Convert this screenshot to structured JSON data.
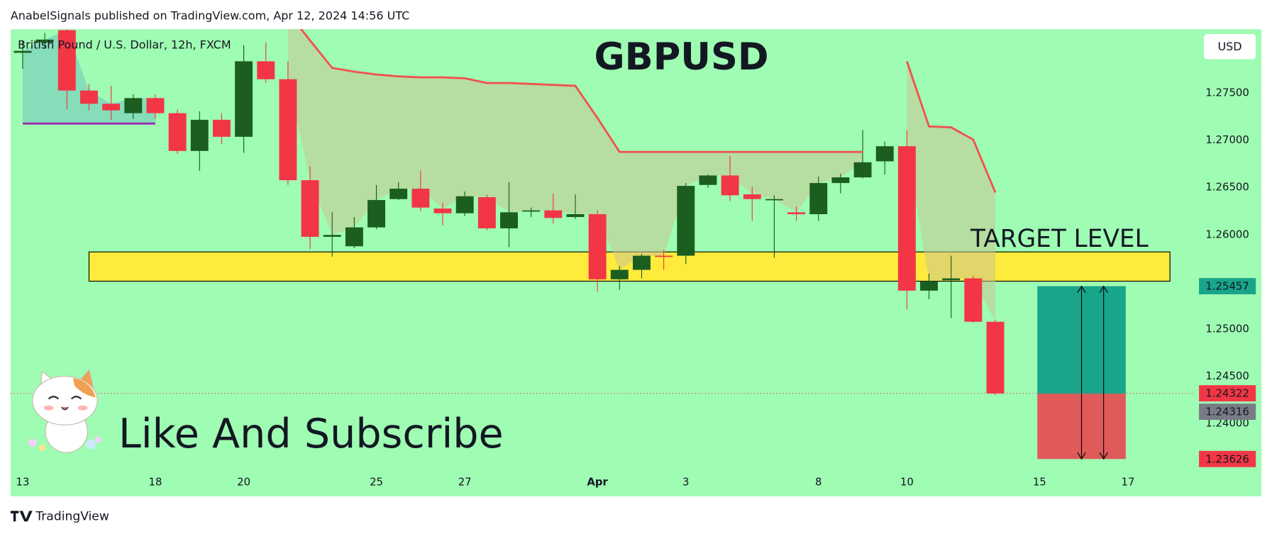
{
  "header": "AnabelSignals published on TradingView.com, Apr 12, 2024 14:56 UTC",
  "footer": "TradingView",
  "chart_data": {
    "type": "candlestick",
    "title": "GBPUSD",
    "symbol": "British Pound / U.S. Dollar, 12h, FXCM",
    "currency": "USD",
    "annotation": "Like And Subscribe",
    "open": [
      1.2793,
      1.2804,
      1.2817,
      1.2753,
      1.2739,
      1.2729,
      1.2745,
      1.2729,
      1.2689,
      1.2722,
      1.2704,
      1.2784,
      1.2765,
      1.2658,
      1.2598,
      1.2588,
      1.2608,
      1.2638,
      1.2649,
      1.2628,
      1.2623,
      1.264,
      1.2607,
      1.2625,
      1.2626,
      1.2619,
      1.2622,
      1.2553,
      1.2563,
      1.2578,
      1.2578,
      1.2653,
      1.2663,
      1.2643,
      1.2637,
      1.2624,
      1.2622,
      1.2655,
      1.2661,
      1.2678,
      1.2694,
      1.2541,
      1.2552,
      1.2554,
      1.2508
    ],
    "high": [
      1.2806,
      1.2814,
      1.2818,
      1.276,
      1.2758,
      1.2749,
      1.2749,
      1.2733,
      1.2731,
      1.2729,
      1.2801,
      1.2804,
      1.2784,
      1.2673,
      1.2624,
      1.2619,
      1.2653,
      1.2656,
      1.2668,
      1.2634,
      1.2646,
      1.2643,
      1.2656,
      1.2629,
      1.2644,
      1.2643,
      1.2626,
      1.2567,
      1.258,
      1.2584,
      1.2655,
      1.2664,
      1.2684,
      1.2651,
      1.2642,
      1.263,
      1.2662,
      1.2665,
      1.2711,
      1.2699,
      1.2711,
      1.2559,
      1.2578,
      1.2557,
      1.251
    ],
    "low": [
      1.2776,
      1.2797,
      1.2733,
      1.2732,
      1.2722,
      1.2723,
      1.2723,
      1.2686,
      1.2668,
      1.2696,
      1.2687,
      1.2761,
      1.2653,
      1.2585,
      1.2577,
      1.2586,
      1.2606,
      1.2637,
      1.2625,
      1.261,
      1.262,
      1.2605,
      1.2587,
      1.2619,
      1.2612,
      1.2617,
      1.254,
      1.2542,
      1.2554,
      1.2563,
      1.2569,
      1.265,
      1.2636,
      1.2615,
      1.2576,
      1.2615,
      1.2615,
      1.2644,
      1.266,
      1.2664,
      1.2521,
      1.2532,
      1.2512,
      1.2507,
      1.243
    ],
    "close": [
      1.2795,
      1.2807,
      1.2753,
      1.2739,
      1.2732,
      1.2745,
      1.2729,
      1.2689,
      1.2722,
      1.2704,
      1.2784,
      1.2765,
      1.2658,
      1.2598,
      1.26,
      1.2608,
      1.2637,
      1.2649,
      1.2629,
      1.2623,
      1.2641,
      1.2607,
      1.2624,
      1.2626,
      1.2618,
      1.2622,
      1.2553,
      1.2563,
      1.2578,
      1.2577,
      1.2652,
      1.2663,
      1.2642,
      1.2638,
      1.2638,
      1.2622,
      1.2655,
      1.2661,
      1.2677,
      1.2694,
      1.2541,
      1.2551,
      1.2554,
      1.2508,
      1.2432
    ],
    "up_color": "#1b5e20",
    "down_color": "#f23645",
    "lines": [
      {
        "color": "#ef5350",
        "fill": "#c9c48f",
        "values": [
          null,
          null,
          null,
          null,
          null,
          null,
          null,
          null,
          null,
          null,
          null,
          null,
          1.2836,
          1.2806,
          1.2777,
          1.2773,
          1.277,
          1.2768,
          1.2767,
          1.2767,
          1.2766,
          1.2761,
          1.2761,
          1.276,
          1.2759,
          1.2758,
          1.2724,
          1.2688,
          1.2688,
          1.2688,
          1.2688,
          1.2688,
          1.2688,
          1.2688,
          1.2688,
          1.2688,
          1.2688,
          1.2688,
          1.2688,
          null,
          1.2784,
          1.2715,
          1.2714,
          1.2701,
          1.2645
        ]
      },
      {
        "color": "#9c27b0",
        "fill": "#6fc3c0",
        "values": [
          1.2718,
          1.2718,
          1.2718,
          1.2718,
          1.2718,
          1.2718,
          1.2718,
          null,
          null,
          null,
          null,
          null,
          null,
          null,
          null,
          null,
          null,
          null,
          null,
          null,
          null,
          null,
          null,
          null,
          null,
          null,
          null,
          null,
          null,
          null,
          null,
          null,
          null,
          null,
          null,
          null,
          null,
          null,
          null,
          null,
          null,
          null,
          null,
          null,
          null
        ]
      }
    ],
    "zone": {
      "label": "TARGET LEVEL",
      "low": 1.2551,
      "high": 1.2582,
      "color": "#ffeb3b"
    },
    "position": {
      "target": 1.25457,
      "entry": 1.24316,
      "stop": 1.23626,
      "profit_color": "#18a58a",
      "loss_color": "#e05a5a",
      "entry_color": "#787b86"
    },
    "last_price": 1.24322,
    "xlim": [
      -0.55,
      52.92
    ],
    "ylim": [
      1.2348,
      1.2818
    ],
    "xticks": [
      {
        "value": 0,
        "label": "13"
      },
      {
        "value": 6,
        "label": "18"
      },
      {
        "value": 10,
        "label": "20"
      },
      {
        "value": 16,
        "label": "25"
      },
      {
        "value": 20,
        "label": "27"
      },
      {
        "value": 26,
        "label": "Apr"
      },
      {
        "value": 30,
        "label": "3"
      },
      {
        "value": 36,
        "label": "8"
      },
      {
        "value": 40,
        "label": "10"
      },
      {
        "value": 46,
        "label": "15"
      },
      {
        "value": 50,
        "label": "17"
      }
    ],
    "yticks": [
      {
        "value": 1.24,
        "label": "1.24000"
      },
      {
        "value": 1.245,
        "label": "1.24500"
      },
      {
        "value": 1.25,
        "label": "1.25000"
      },
      {
        "value": 1.26,
        "label": "1.26000"
      },
      {
        "value": 1.265,
        "label": "1.26500"
      },
      {
        "value": 1.27,
        "label": "1.27000"
      },
      {
        "value": 1.275,
        "label": "1.27500"
      }
    ]
  }
}
